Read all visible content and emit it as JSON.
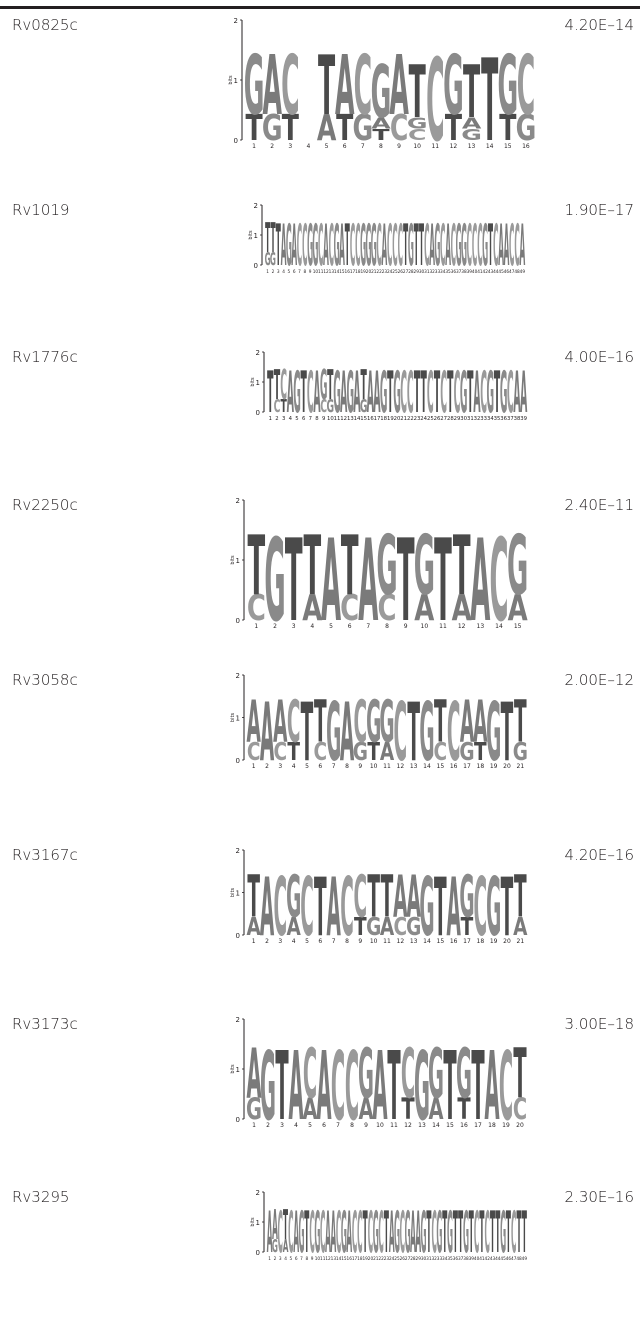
{
  "table": {
    "rows": [
      {
        "gene": "Rv0825c",
        "evalue": "4.20E–14",
        "logo_scale": [
          2,
          1,
          0
        ]
      },
      {
        "gene": "Rv1019",
        "evalue": "1.90E–17",
        "logo_scale": [
          2,
          1,
          0
        ]
      },
      {
        "gene": "Rv1776c",
        "evalue": "4.00E–16",
        "logo_scale": [
          2,
          1,
          0
        ]
      },
      {
        "gene": "Rv2250c",
        "evalue": "2.40E–11",
        "logo_scale": [
          2,
          1,
          0
        ]
      },
      {
        "gene": "Rv3058c",
        "evalue": "2.00E–12",
        "logo_scale": [
          2,
          1,
          0
        ]
      },
      {
        "gene": "Rv3167c",
        "evalue": "4.20E–16",
        "logo_scale": [
          2,
          1,
          0
        ]
      },
      {
        "gene": "Rv3173c",
        "evalue": "3.00E–18",
        "logo_scale": [
          2,
          1,
          0
        ]
      },
      {
        "gene": "Rv3295",
        "evalue": "2.30E–16",
        "logo_scale": [
          2,
          1,
          0
        ]
      }
    ]
  },
  "logo_axis_label": "bits",
  "motifs": [
    {
      "positions": [
        "GT",
        "AG",
        "CT",
        "",
        "TA",
        "AT",
        "CG",
        "GAT",
        "AC",
        "TGC",
        "C",
        "GT",
        "TAG",
        "T",
        "GT",
        "CG"
      ]
    },
    {
      "positions": [
        "TG",
        "TG",
        "T",
        "A",
        "G",
        "A",
        "C",
        "C",
        "G",
        "G",
        "C",
        "A",
        "C",
        "G",
        "A",
        "T",
        "C",
        "C",
        "G",
        "G",
        "G",
        "C",
        "A",
        "C",
        "C",
        "C",
        "T",
        "G",
        "T",
        "T",
        "C",
        "A",
        "G",
        "C",
        "A",
        "C",
        "G",
        "G",
        "C",
        "C",
        "C",
        "G",
        "T",
        "C",
        "A",
        "A",
        "C",
        "C",
        "A"
      ]
    },
    {
      "positions": [
        "T",
        "TC",
        "CT",
        "A",
        "G",
        "T",
        "C",
        "A",
        "GC",
        "TG",
        "G",
        "A",
        "G",
        "A",
        "TG",
        "A",
        "A",
        "G",
        "T",
        "G",
        "C",
        "C",
        "T",
        "T",
        "C",
        "T",
        "C",
        "T",
        "C",
        "G",
        "T",
        "A",
        "C",
        "G",
        "T",
        "G",
        "C",
        "A",
        "A"
      ]
    },
    {
      "positions": [
        "TC",
        "G",
        "T",
        "TA",
        "A",
        "TC",
        "A",
        "GC",
        "T",
        "GA",
        "T",
        "TA",
        "A",
        "C",
        "GA"
      ]
    },
    {
      "positions": [
        "AC",
        "A",
        "AC",
        "CT",
        "T",
        "TC",
        "G",
        "A",
        "CG",
        "GT",
        "GA",
        "C",
        "T",
        "G",
        "TC",
        "C",
        "AG",
        "AT",
        "G",
        "T",
        "TG"
      ]
    },
    {
      "positions": [
        "TA",
        "A",
        "C",
        "GA",
        "C",
        "T",
        "A",
        "C",
        "CT",
        "TG",
        "TA",
        "AC",
        "AG",
        "G",
        "T",
        "A",
        "GT",
        "C",
        "G",
        "T",
        "TA"
      ]
    },
    {
      "positions": [
        "AG",
        "G",
        "T",
        "A",
        "CA",
        "A",
        "C",
        "C",
        "GA",
        "A",
        "T",
        "CT",
        "G",
        "GA",
        "T",
        "GT",
        "T",
        "A",
        "C",
        "TC"
      ]
    },
    {
      "positions": [
        "A",
        "AG",
        "C",
        "TA",
        "C",
        "A",
        "G",
        "T",
        "C",
        "G",
        "C",
        "A",
        "A",
        "C",
        "G",
        "A",
        "C",
        "C",
        "T",
        "C",
        "G",
        "C",
        "T",
        "A",
        "G",
        "C",
        "G",
        "A",
        "A",
        "G",
        "T",
        "C",
        "G",
        "T",
        "G",
        "T",
        "T",
        "G",
        "T",
        "C",
        "T",
        "C",
        "T",
        "T",
        "G",
        "T",
        "C",
        "T",
        "T"
      ]
    }
  ]
}
